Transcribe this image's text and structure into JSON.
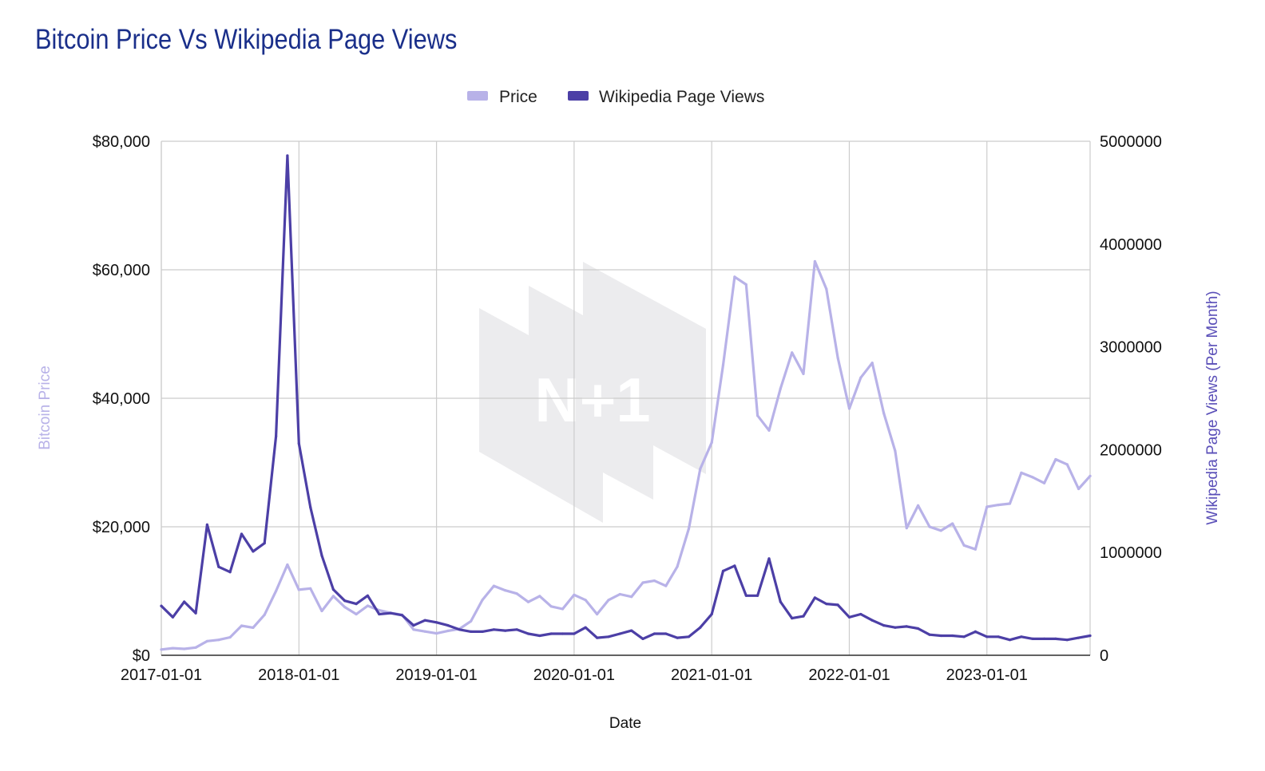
{
  "chart_data": {
    "type": "line",
    "title": "Bitcoin Price Vs Wikipedia Page Views",
    "xlabel": "Date",
    "ylabel_left": "Bitcoin Price",
    "ylabel_right": "Wikipedia Page Views (Per Month)",
    "ylim_left": [
      0,
      80000
    ],
    "ylim_right": [
      0,
      5000000
    ],
    "yticks_left": [
      "$0",
      "$20,000",
      "$40,000",
      "$60,000",
      "$80,000"
    ],
    "yticks_left_values": [
      0,
      20000,
      40000,
      60000,
      80000
    ],
    "yticks_right": [
      "0",
      "1000000",
      "2000000",
      "3000000",
      "4000000",
      "5000000"
    ],
    "yticks_right_values": [
      0,
      1000000,
      2000000,
      3000000,
      4000000,
      5000000
    ],
    "xticks": [
      "2017-01-01",
      "2018-01-01",
      "2019-01-01",
      "2020-01-01",
      "2021-01-01",
      "2022-01-01",
      "2023-01-01"
    ],
    "x_start": "2017-01",
    "months_count": 82,
    "legend": [
      "Price",
      "Wikipedia Page Views"
    ],
    "colors": {
      "price": "#b8b2e8",
      "views": "#4c3fa6",
      "title": "#1a2f8a",
      "grid": "#cccccc",
      "watermark": "#ececee"
    },
    "watermark_text": "N+1",
    "series": [
      {
        "name": "Price",
        "axis": "left",
        "values": [
          900,
          1100,
          1000,
          1200,
          2200,
          2400,
          2800,
          4600,
          4300,
          6300,
          10000,
          14100,
          10200,
          10400,
          6900,
          9200,
          7500,
          6400,
          7700,
          7000,
          6600,
          6300,
          4000,
          3700,
          3400,
          3800,
          4100,
          5300,
          8600,
          10800,
          10100,
          9600,
          8300,
          9200,
          7600,
          7200,
          9400,
          8600,
          6400,
          8600,
          9500,
          9100,
          11300,
          11600,
          10800,
          13800,
          19700,
          29000,
          33100,
          45200,
          58900,
          57700,
          37300,
          35000,
          41500,
          47100,
          43800,
          61300,
          57000,
          46300,
          38400,
          43200,
          45500,
          37700,
          31800,
          19800,
          23300,
          20000,
          19400,
          20500,
          17100,
          16500,
          23100,
          23400,
          23600,
          28400,
          27700,
          26800,
          30500,
          29700,
          25900,
          27900
        ]
      },
      {
        "name": "Wikipedia Page Views",
        "axis": "right",
        "values": [
          480000,
          370000,
          520000,
          410000,
          1270000,
          860000,
          810000,
          1180000,
          1010000,
          1090000,
          2130000,
          4860000,
          2060000,
          1440000,
          970000,
          640000,
          530000,
          500000,
          580000,
          400000,
          410000,
          390000,
          290000,
          340000,
          320000,
          290000,
          250000,
          230000,
          230000,
          250000,
          240000,
          250000,
          210000,
          190000,
          210000,
          210000,
          210000,
          270000,
          170000,
          180000,
          210000,
          240000,
          160000,
          210000,
          210000,
          170000,
          180000,
          270000,
          400000,
          820000,
          870000,
          580000,
          580000,
          940000,
          520000,
          360000,
          380000,
          560000,
          500000,
          490000,
          370000,
          400000,
          340000,
          290000,
          270000,
          280000,
          260000,
          200000,
          190000,
          190000,
          180000,
          230000,
          180000,
          180000,
          150000,
          180000,
          160000,
          160000,
          160000,
          150000,
          170000,
          190000
        ]
      }
    ]
  }
}
